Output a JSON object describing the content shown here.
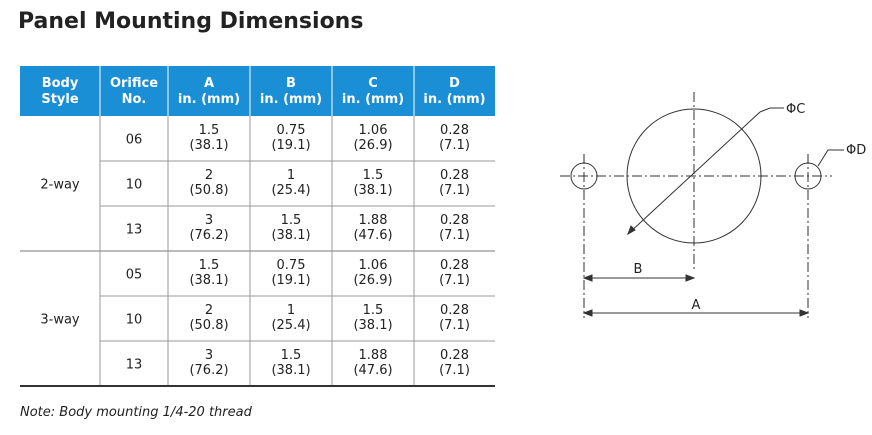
{
  "title": "Panel Mounting Dimensions",
  "table": {
    "header": [
      [
        "Body",
        "Style"
      ],
      [
        "Orifice",
        "No."
      ],
      [
        "A",
        "in. (mm)"
      ],
      [
        "B",
        "in. (mm)"
      ],
      [
        "C",
        "in. (mm)"
      ],
      [
        "D",
        "in. (mm)"
      ]
    ],
    "groups": [
      {
        "body_style": "2-way",
        "rows": [
          {
            "orifice": "06",
            "cells": [
              [
                "1.5",
                "(38.1)"
              ],
              [
                "0.75",
                "(19.1)"
              ],
              [
                "1.06",
                "(26.9)"
              ],
              [
                "0.28",
                "(7.1)"
              ]
            ]
          },
          {
            "orifice": "10",
            "cells": [
              [
                "2",
                "(50.8)"
              ],
              [
                "1",
                "(25.4)"
              ],
              [
                "1.5",
                "(38.1)"
              ],
              [
                "0.28",
                "(7.1)"
              ]
            ]
          },
          {
            "orifice": "13",
            "cells": [
              [
                "3",
                "(76.2)"
              ],
              [
                "1.5",
                "(38.1)"
              ],
              [
                "1.88",
                "(47.6)"
              ],
              [
                "0.28",
                "(7.1)"
              ]
            ]
          }
        ]
      },
      {
        "body_style": "3-way",
        "rows": [
          {
            "orifice": "05",
            "cells": [
              [
                "1.5",
                "(38.1)"
              ],
              [
                "0.75",
                "(19.1)"
              ],
              [
                "1.06",
                "(26.9)"
              ],
              [
                "0.28",
                "(7.1)"
              ]
            ]
          },
          {
            "orifice": "10",
            "cells": [
              [
                "2",
                "(50.8)"
              ],
              [
                "1",
                "(25.4)"
              ],
              [
                "1.5",
                "(38.1)"
              ],
              [
                "0.28",
                "(7.1)"
              ]
            ]
          },
          {
            "orifice": "13",
            "cells": [
              [
                "3",
                "(76.2)"
              ],
              [
                "1.5",
                "(38.1)"
              ],
              [
                "1.88",
                "(47.6)"
              ],
              [
                "0.28",
                "(7.1)"
              ]
            ]
          }
        ]
      }
    ]
  },
  "note": "Note: Body mounting 1/4-20 thread",
  "diagram": {
    "label_c": "ΦC",
    "label_d": "ΦD",
    "label_b": "B",
    "label_a": "A"
  }
}
